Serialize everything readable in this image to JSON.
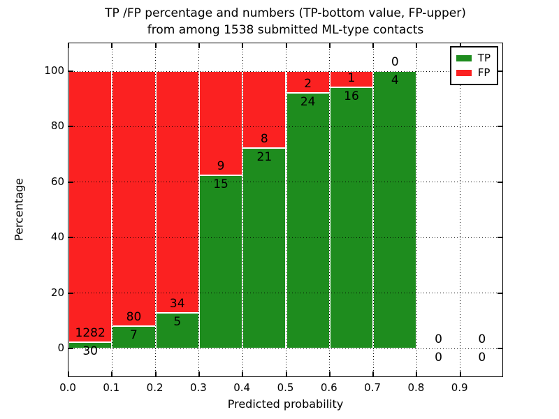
{
  "chart_data": {
    "type": "bar",
    "stacked": true,
    "title_line1": "TP /FP percentage and numbers (TP-bottom value, FP-upper)",
    "title_line2": "from among 1538 submitted ML-type contacts",
    "xlabel": "Predicted probability",
    "ylabel": "Percentage",
    "bin_starts": [
      0.0,
      0.1,
      0.2,
      0.3,
      0.4,
      0.5,
      0.6,
      0.7,
      0.8,
      0.9
    ],
    "bin_width": 0.1,
    "series": [
      {
        "name": "TP",
        "color": "#1e8c1e",
        "counts": [
          30,
          7,
          5,
          15,
          21,
          24,
          16,
          4,
          0,
          0
        ]
      },
      {
        "name": "FP",
        "color": "#fb2121",
        "counts": [
          1282,
          80,
          34,
          9,
          8,
          2,
          1,
          0,
          0,
          0
        ]
      }
    ],
    "bar_edge_color": "#ffffff",
    "xtick_labels": [
      "0.0",
      "0.1",
      "0.2",
      "0.3",
      "0.4",
      "0.5",
      "0.6",
      "0.7",
      "0.8",
      "0.9"
    ],
    "ytick_values": [
      0,
      20,
      40,
      60,
      80,
      100
    ],
    "ytick_labels": [
      "0",
      "20",
      "40",
      "60",
      "80",
      "100"
    ],
    "xlim": [
      0.0,
      1.0
    ],
    "ylim": [
      -10.6,
      109.8
    ],
    "grid": true,
    "grid_style": "dotted",
    "legend_position": "upper right"
  }
}
